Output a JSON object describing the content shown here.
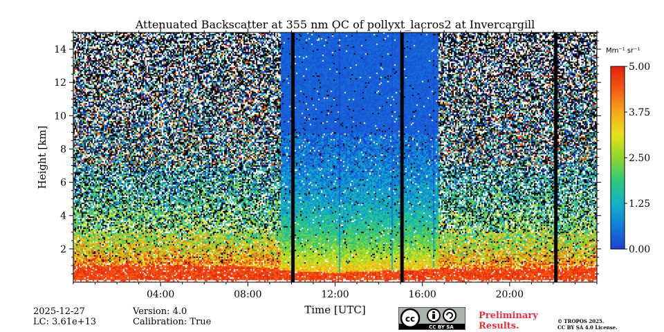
{
  "chart_data": {
    "type": "heatmap",
    "title": "Attenuated Backscatter at 355 nm OC of pollyxt_lacros2 at Invercargill",
    "xlabel": "Time [UTC]",
    "ylabel": "Height [km]",
    "xlim": [
      0,
      24
    ],
    "ylim": [
      0,
      15
    ],
    "x_ticks": [
      4,
      8,
      12,
      16,
      20
    ],
    "x_tick_labels": [
      "04:00",
      "08:00",
      "12:00",
      "16:00",
      "20:00"
    ],
    "y_ticks": [
      2,
      4,
      6,
      8,
      10,
      12,
      14
    ],
    "y_tick_labels": [
      "2",
      "4",
      "6",
      "8",
      "10",
      "12",
      "14"
    ],
    "colorbar": {
      "label": "Mm⁻¹ sr⁻¹",
      "range": [
        0,
        5
      ],
      "ticks": [
        0,
        1.25,
        2.5,
        3.75,
        5
      ],
      "tick_labels": [
        "0.00",
        "1.25",
        "2.50",
        "3.75",
        "5.00"
      ],
      "colormap": [
        "#1f3fd6",
        "#0f7fd8",
        "#12b3c8",
        "#2ec97a",
        "#8ed62c",
        "#e6e21c",
        "#f7a81a",
        "#f45a12",
        "#e81f0d"
      ]
    },
    "data_gaps_hours": [
      10.05,
      15.05,
      22.1
    ],
    "cloud_free_hours": [
      [
        9.5,
        16.7
      ]
    ],
    "boundary_layer_top_km": [
      [
        0,
        1.0
      ],
      [
        4,
        1.0
      ],
      [
        8,
        1.0
      ],
      [
        10,
        0.7
      ],
      [
        12,
        0.6
      ],
      [
        16,
        0.8
      ],
      [
        20,
        0.8
      ],
      [
        24,
        0.9
      ]
    ]
  },
  "footer": {
    "date": "2025-12-27",
    "lc": "LC: 3.61e+13",
    "version": "Version: 4.0",
    "calibration": "Calibration: True",
    "preliminary_line1": "Preliminary",
    "preliminary_line2": "Results.",
    "copyright_line1": "© TROPOS 2025.",
    "copyright_line2": "CC BY SA 4.0 License.",
    "license_badge": "CC BY SA",
    "license_badge_icon": "cc-by-sa-icon"
  }
}
